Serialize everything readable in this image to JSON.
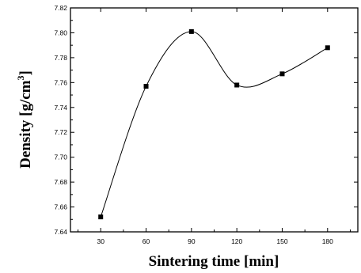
{
  "chart_data": {
    "type": "line",
    "xlabel": "Sintering time [min]",
    "ylabel": "Density [g/cm",
    "ylabel_superscript": "3",
    "ylabel_close": "]",
    "x": [
      30,
      60,
      90,
      120,
      150,
      180
    ],
    "y": [
      7.652,
      7.757,
      7.801,
      7.758,
      7.767,
      7.788
    ],
    "xlim": [
      10,
      200
    ],
    "ylim": [
      7.64,
      7.82
    ],
    "x_ticks": [
      30,
      60,
      90,
      120,
      150,
      180
    ],
    "x_tick_labels": [
      "30",
      "60",
      "90",
      "120",
      "150",
      "180"
    ],
    "y_ticks": [
      7.64,
      7.66,
      7.68,
      7.7,
      7.72,
      7.74,
      7.76,
      7.78,
      7.8,
      7.82
    ],
    "y_tick_labels": [
      "7.64",
      "7.66",
      "7.68",
      "7.70",
      "7.72",
      "7.74",
      "7.76",
      "7.78",
      "7.80",
      "7.82"
    ],
    "grid": false,
    "legend": "none",
    "marker": "square",
    "line_style": "smooth",
    "colors": {
      "line": "#000000",
      "marker": "#000000",
      "axis": "#000000"
    }
  }
}
